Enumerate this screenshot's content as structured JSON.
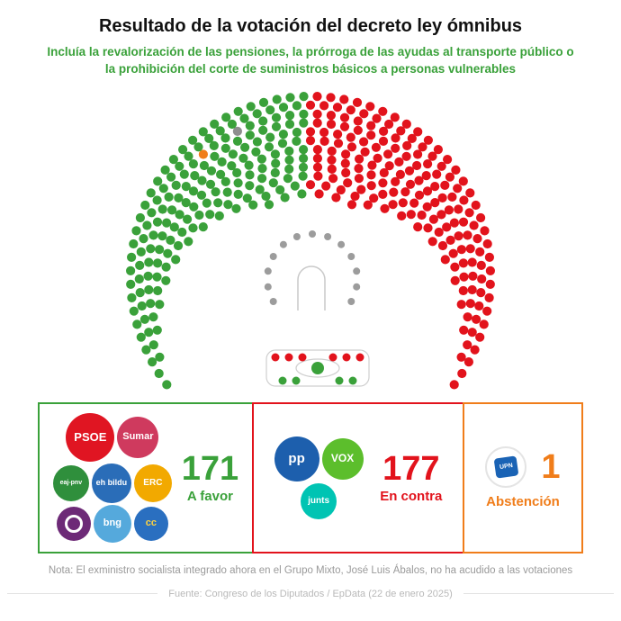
{
  "header": {
    "title": "Resultado de la votación del decreto ley ómnibus",
    "subtitle": "Incluía la revalorización de las pensiones, la prórroga de las ayudas al transporte público o la prohibición del corte de suministros básicos a personas vulnerables"
  },
  "chart_data": {
    "type": "parliament",
    "title": "Resultado de la votación del decreto ley ómnibus",
    "total_seats": 350,
    "seat_rows": [
      6,
      9,
      12,
      16,
      20,
      24,
      29,
      35,
      40,
      46,
      53,
      60
    ],
    "groups": [
      {
        "id": "favor",
        "label": "A favor",
        "votes": 171,
        "color": "#3aa13a",
        "parties": [
          "PSOE",
          "Sumar",
          "EAJ-PNV",
          "EH Bildu",
          "ERC",
          "Podemos",
          "BNG",
          "CC"
        ]
      },
      {
        "id": "contra",
        "label": "En contra",
        "votes": 177,
        "color": "#e2131c",
        "parties": [
          "PP",
          "VOX",
          "Junts"
        ]
      },
      {
        "id": "abstencion",
        "label": "Abstención",
        "votes": 1,
        "color": "#f07d1a",
        "parties": [
          "UPN"
        ]
      },
      {
        "id": "ausente",
        "label": "No ha acudido a las votaciones",
        "votes": 1,
        "color": "#8e8e8e",
        "parties": [
          "Grupo Mixto (José Luis Ábalos)"
        ]
      }
    ],
    "government_bench_seats": 13,
    "bench": {
      "top_dots": 6,
      "top_color": "#e2131c",
      "bottom_dots": 4,
      "bottom_color": "#3aa13a",
      "president_color": "#3aa13a"
    }
  },
  "legend": {
    "panels": [
      {
        "id": "favor",
        "accent": "#3aa13a",
        "value": "171",
        "label": "A favor",
        "party_rows": [
          [
            {
              "name": "PSOE",
              "label": "PSOE",
              "bg": "#e01522",
              "fg": "#ffffff",
              "size": 54,
              "font": 13,
              "weight": 800
            },
            {
              "name": "Sumar",
              "label": "Sumar",
              "bg": "#cf3a5e",
              "fg": "#ffffff",
              "size": 46,
              "font": 11,
              "weight": 700
            }
          ],
          [
            {
              "name": "EAJ-PNV",
              "label": "eaj-pnv",
              "bg": "#2f8f3c",
              "fg": "#ffffff",
              "size": 40,
              "font": 7,
              "weight": 700
            },
            {
              "name": "EH Bildu",
              "label": "eh bildu",
              "bg": "#2a6db8",
              "fg": "#ffffff",
              "size": 44,
              "font": 9,
              "weight": 700
            },
            {
              "name": "ERC",
              "label": "ERC",
              "bg": "#f2a900",
              "fg": "#ffffff",
              "size": 42,
              "font": 10,
              "weight": 800
            }
          ],
          [
            {
              "name": "Podemos",
              "label": "",
              "bg": "#6d2a77",
              "fg": "#ffffff",
              "size": 38,
              "font": 8,
              "weight": 700,
              "variant": "ring"
            },
            {
              "name": "BNG",
              "label": "bng",
              "bg": "#55a9dc",
              "fg": "#ffffff",
              "size": 42,
              "font": 11,
              "weight": 800
            },
            {
              "name": "CC",
              "label": "cc",
              "bg": "#2a6fc0",
              "fg": "#ffd23f",
              "size": 38,
              "font": 11,
              "weight": 800
            }
          ]
        ]
      },
      {
        "id": "contra",
        "accent": "#e2131c",
        "value": "177",
        "label": "En contra",
        "party_rows": [
          [
            {
              "name": "PP",
              "label": "pp",
              "bg": "#1d5fad",
              "fg": "#ffffff",
              "size": 50,
              "font": 15,
              "weight": 800
            },
            {
              "name": "VOX",
              "label": "VOX",
              "bg": "#5cbe2c",
              "fg": "#ffffff",
              "size": 46,
              "font": 12,
              "weight": 800
            }
          ],
          [
            {
              "name": "Junts",
              "label": "junts",
              "bg": "#00c4b3",
              "fg": "#ffffff",
              "size": 40,
              "font": 10,
              "weight": 700
            }
          ]
        ]
      },
      {
        "id": "abstencion",
        "accent": "#f07d1a",
        "value": "1",
        "label": "Abstención",
        "party_rows": [
          [
            {
              "name": "UPN",
              "label": "UPN",
              "bg": "#ffffff",
              "fg": "#1a63b5",
              "size": 46,
              "font": 8,
              "weight": 800,
              "variant": "upn"
            }
          ]
        ]
      }
    ]
  },
  "note": "Nota: El exministro socialista integrado ahora en el Grupo Mixto, José Luis Ábalos, no ha acudido a las votaciones",
  "source": "Fuente: Congreso de los Diputados / EpData (22 de enero 2025)"
}
